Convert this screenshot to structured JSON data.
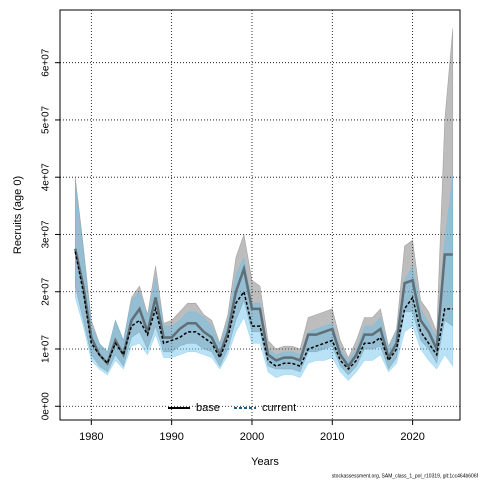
{
  "chart_data": {
    "type": "line",
    "ylabel": "Recruits (age 0)",
    "xlabel": "Years",
    "footnote": "stockassessment.org, SAM_class_1_pol_r10319, git:1cc464b606f",
    "legend": "bottom",
    "grid": true,
    "x": [
      1978,
      1979,
      1980,
      1981,
      1982,
      1983,
      1984,
      1985,
      1986,
      1987,
      1988,
      1989,
      1990,
      1991,
      1992,
      1993,
      1994,
      1995,
      1996,
      1997,
      1998,
      1999,
      2000,
      2001,
      2002,
      2003,
      2004,
      2005,
      2006,
      2007,
      2008,
      2009,
      2010,
      2011,
      2012,
      2013,
      2014,
      2015,
      2016,
      2017,
      2018,
      2019,
      2020,
      2021,
      2022,
      2023,
      2024,
      2025
    ],
    "xlim": [
      1976.1,
      2025.9
    ],
    "xticks": [
      1980,
      1990,
      2000,
      2010,
      2020
    ],
    "ylim": [
      -2400000,
      69200000
    ],
    "yticks": [
      {
        "value": 0,
        "label": "0e+00"
      },
      {
        "value": 10000000,
        "label": "1e+07"
      },
      {
        "value": 20000000,
        "label": "2e+07"
      },
      {
        "value": 30000000,
        "label": "3e+07"
      },
      {
        "value": 40000000,
        "label": "4e+07"
      },
      {
        "value": 50000000,
        "label": "5e+07"
      },
      {
        "value": 60000000,
        "label": "6e+07"
      }
    ],
    "series": [
      {
        "name": "base",
        "color": "#5f6f78",
        "band_color": "rgba(90,90,90,0.4)",
        "line_style": "solid",
        "values": [
          27500000,
          21000000,
          12000000,
          9000000,
          7500000,
          11500000,
          9000000,
          15000000,
          17000000,
          13000000,
          19000000,
          12000000,
          12000000,
          13500000,
          14500000,
          14500000,
          13000000,
          12000000,
          9000000,
          13000000,
          20000000,
          24000000,
          17000000,
          17000000,
          9000000,
          8000000,
          8500000,
          8500000,
          8000000,
          12500000,
          12500000,
          13000000,
          13500000,
          9000000,
          7000000,
          9000000,
          12500000,
          12500000,
          13500000,
          8500000,
          11000000,
          21500000,
          22000000,
          15000000,
          13000000,
          10000000,
          26500000,
          26500000
        ],
        "upper": [
          40000000,
          28000000,
          15000000,
          11000000,
          9500000,
          15000000,
          11500000,
          19000000,
          21000000,
          16000000,
          24500000,
          14500000,
          15000000,
          16500000,
          18000000,
          18000000,
          16000000,
          15000000,
          11000000,
          16000000,
          26000000,
          30000000,
          22000000,
          21000000,
          11500000,
          10000000,
          10500000,
          10500000,
          10000000,
          15500000,
          16000000,
          16500000,
          17000000,
          11500000,
          8500000,
          11500000,
          15500000,
          15500000,
          17000000,
          10500000,
          13500000,
          28000000,
          29000000,
          18500000,
          16500000,
          13000000,
          50000000,
          66000000
        ],
        "lower": [
          21000000,
          15000000,
          9000000,
          7000000,
          6000000,
          9000000,
          7000000,
          12000000,
          13000000,
          10000000,
          14000000,
          9500000,
          9500000,
          10500000,
          11000000,
          11000000,
          10000000,
          9500000,
          7000000,
          10000000,
          15000000,
          18500000,
          13000000,
          13000000,
          7000000,
          6500000,
          6500000,
          6500000,
          6000000,
          9500000,
          9500000,
          10000000,
          10500000,
          7000000,
          5500000,
          7000000,
          10000000,
          10000000,
          10500000,
          6500000,
          8500000,
          16500000,
          16500000,
          11500000,
          10000000,
          7500000,
          15000000,
          14000000
        ]
      },
      {
        "name": "current",
        "color": "#000000",
        "band_color": "rgba(100,190,235,0.45)",
        "line_style": "dashed",
        "values": [
          27000000,
          20000000,
          11000000,
          9000000,
          7500000,
          11000000,
          9000000,
          14000000,
          15000000,
          12500000,
          17000000,
          11000000,
          11500000,
          12000000,
          13000000,
          13000000,
          12000000,
          11000000,
          8500000,
          12000000,
          18000000,
          20000000,
          14000000,
          14000000,
          8000000,
          7000000,
          7500000,
          7500000,
          7000000,
          10000000,
          10500000,
          11000000,
          11500000,
          8000000,
          6500000,
          8000000,
          11000000,
          11000000,
          12000000,
          8000000,
          10000000,
          17000000,
          19000000,
          13000000,
          11000000,
          9000000,
          17000000,
          17000000
        ],
        "upper": [
          39000000,
          27000000,
          14000000,
          11000000,
          9500000,
          15000000,
          11500000,
          18500000,
          20000000,
          15500000,
          22500000,
          14000000,
          14000000,
          15000000,
          16500000,
          16500000,
          15500000,
          14000000,
          10500000,
          15000000,
          23000000,
          26000000,
          18000000,
          18000000,
          10000000,
          9000000,
          9500000,
          9500000,
          9000000,
          13000000,
          13500000,
          14000000,
          14500000,
          10000000,
          8000000,
          10000000,
          14000000,
          14000000,
          15500000,
          10000000,
          13000000,
          22000000,
          24500000,
          17000000,
          14500000,
          12000000,
          29000000,
          40000000
        ],
        "lower": [
          19000000,
          14000000,
          8000000,
          6500000,
          5500000,
          8000000,
          6500000,
          10500000,
          11000000,
          9000000,
          12500000,
          8500000,
          8500000,
          9000000,
          9500000,
          9500000,
          9000000,
          8500000,
          6500000,
          9000000,
          13000000,
          15500000,
          11000000,
          11000000,
          6000000,
          5000000,
          5500000,
          5500000,
          5000000,
          7500000,
          8000000,
          8000000,
          8500000,
          6000000,
          4500000,
          6000000,
          8000000,
          8000000,
          9000000,
          6000000,
          7500000,
          13000000,
          14000000,
          10000000,
          8000000,
          6500000,
          9000000,
          7000000
        ]
      }
    ]
  }
}
